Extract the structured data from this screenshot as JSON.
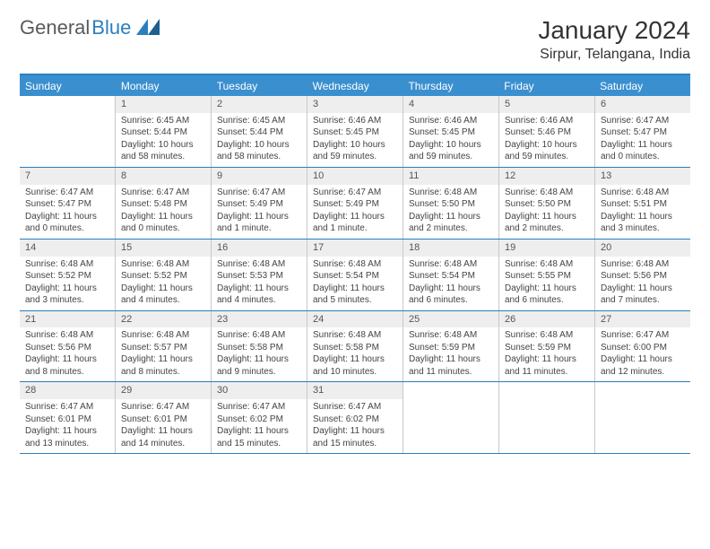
{
  "brand": {
    "part1": "General",
    "part2": "Blue"
  },
  "title": "January 2024",
  "location": "Sirpur, Telangana, India",
  "colors": {
    "accent": "#3a8fcf",
    "accent_border": "#2a7fbf",
    "daynum_bg": "#eeeeee",
    "text": "#333333"
  },
  "weekdays": [
    "Sunday",
    "Monday",
    "Tuesday",
    "Wednesday",
    "Thursday",
    "Friday",
    "Saturday"
  ],
  "grid_start_offset": 1,
  "days": [
    {
      "n": 1,
      "sunrise": "6:45 AM",
      "sunset": "5:44 PM",
      "daylight": "10 hours and 58 minutes."
    },
    {
      "n": 2,
      "sunrise": "6:45 AM",
      "sunset": "5:44 PM",
      "daylight": "10 hours and 58 minutes."
    },
    {
      "n": 3,
      "sunrise": "6:46 AM",
      "sunset": "5:45 PM",
      "daylight": "10 hours and 59 minutes."
    },
    {
      "n": 4,
      "sunrise": "6:46 AM",
      "sunset": "5:45 PM",
      "daylight": "10 hours and 59 minutes."
    },
    {
      "n": 5,
      "sunrise": "6:46 AM",
      "sunset": "5:46 PM",
      "daylight": "10 hours and 59 minutes."
    },
    {
      "n": 6,
      "sunrise": "6:47 AM",
      "sunset": "5:47 PM",
      "daylight": "11 hours and 0 minutes."
    },
    {
      "n": 7,
      "sunrise": "6:47 AM",
      "sunset": "5:47 PM",
      "daylight": "11 hours and 0 minutes."
    },
    {
      "n": 8,
      "sunrise": "6:47 AM",
      "sunset": "5:48 PM",
      "daylight": "11 hours and 0 minutes."
    },
    {
      "n": 9,
      "sunrise": "6:47 AM",
      "sunset": "5:49 PM",
      "daylight": "11 hours and 1 minute."
    },
    {
      "n": 10,
      "sunrise": "6:47 AM",
      "sunset": "5:49 PM",
      "daylight": "11 hours and 1 minute."
    },
    {
      "n": 11,
      "sunrise": "6:48 AM",
      "sunset": "5:50 PM",
      "daylight": "11 hours and 2 minutes."
    },
    {
      "n": 12,
      "sunrise": "6:48 AM",
      "sunset": "5:50 PM",
      "daylight": "11 hours and 2 minutes."
    },
    {
      "n": 13,
      "sunrise": "6:48 AM",
      "sunset": "5:51 PM",
      "daylight": "11 hours and 3 minutes."
    },
    {
      "n": 14,
      "sunrise": "6:48 AM",
      "sunset": "5:52 PM",
      "daylight": "11 hours and 3 minutes."
    },
    {
      "n": 15,
      "sunrise": "6:48 AM",
      "sunset": "5:52 PM",
      "daylight": "11 hours and 4 minutes."
    },
    {
      "n": 16,
      "sunrise": "6:48 AM",
      "sunset": "5:53 PM",
      "daylight": "11 hours and 4 minutes."
    },
    {
      "n": 17,
      "sunrise": "6:48 AM",
      "sunset": "5:54 PM",
      "daylight": "11 hours and 5 minutes."
    },
    {
      "n": 18,
      "sunrise": "6:48 AM",
      "sunset": "5:54 PM",
      "daylight": "11 hours and 6 minutes."
    },
    {
      "n": 19,
      "sunrise": "6:48 AM",
      "sunset": "5:55 PM",
      "daylight": "11 hours and 6 minutes."
    },
    {
      "n": 20,
      "sunrise": "6:48 AM",
      "sunset": "5:56 PM",
      "daylight": "11 hours and 7 minutes."
    },
    {
      "n": 21,
      "sunrise": "6:48 AM",
      "sunset": "5:56 PM",
      "daylight": "11 hours and 8 minutes."
    },
    {
      "n": 22,
      "sunrise": "6:48 AM",
      "sunset": "5:57 PM",
      "daylight": "11 hours and 8 minutes."
    },
    {
      "n": 23,
      "sunrise": "6:48 AM",
      "sunset": "5:58 PM",
      "daylight": "11 hours and 9 minutes."
    },
    {
      "n": 24,
      "sunrise": "6:48 AM",
      "sunset": "5:58 PM",
      "daylight": "11 hours and 10 minutes."
    },
    {
      "n": 25,
      "sunrise": "6:48 AM",
      "sunset": "5:59 PM",
      "daylight": "11 hours and 11 minutes."
    },
    {
      "n": 26,
      "sunrise": "6:48 AM",
      "sunset": "5:59 PM",
      "daylight": "11 hours and 11 minutes."
    },
    {
      "n": 27,
      "sunrise": "6:47 AM",
      "sunset": "6:00 PM",
      "daylight": "11 hours and 12 minutes."
    },
    {
      "n": 28,
      "sunrise": "6:47 AM",
      "sunset": "6:01 PM",
      "daylight": "11 hours and 13 minutes."
    },
    {
      "n": 29,
      "sunrise": "6:47 AM",
      "sunset": "6:01 PM",
      "daylight": "11 hours and 14 minutes."
    },
    {
      "n": 30,
      "sunrise": "6:47 AM",
      "sunset": "6:02 PM",
      "daylight": "11 hours and 15 minutes."
    },
    {
      "n": 31,
      "sunrise": "6:47 AM",
      "sunset": "6:02 PM",
      "daylight": "11 hours and 15 minutes."
    }
  ],
  "labels": {
    "sunrise": "Sunrise:",
    "sunset": "Sunset:",
    "daylight": "Daylight:"
  }
}
